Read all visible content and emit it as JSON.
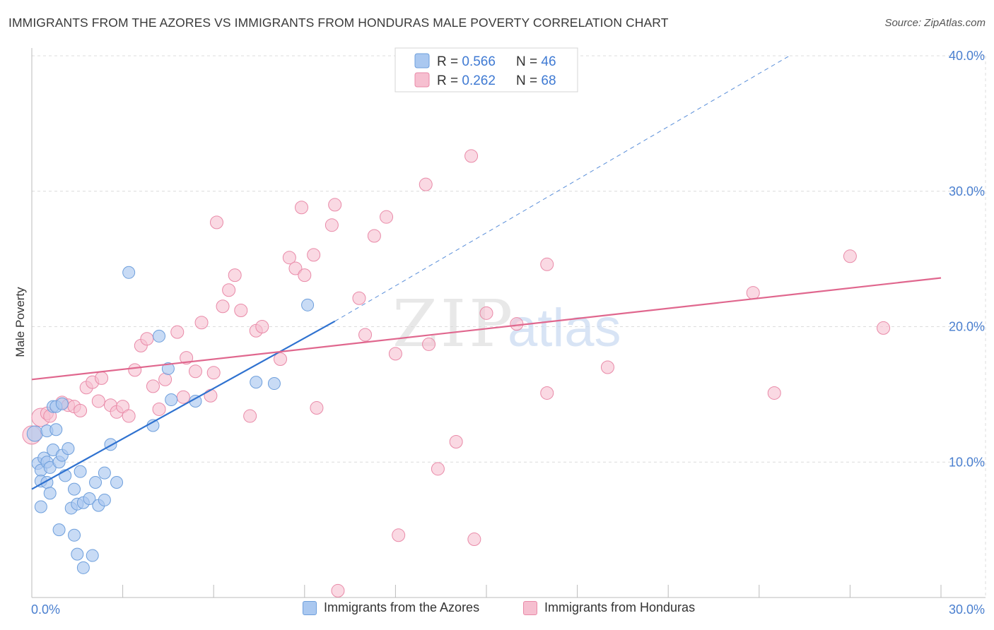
{
  "header": {
    "title": "IMMIGRANTS FROM THE AZORES VS IMMIGRANTS FROM HONDURAS MALE POVERTY CORRELATION CHART",
    "source": "Source: ZipAtlas.com"
  },
  "watermark": {
    "zip": "ZIP",
    "atlas": "atlas"
  },
  "colors": {
    "blue_fill": "#aac8f0",
    "blue_stroke": "#6e9fdc",
    "blue_line": "#2f72d0",
    "pink_fill": "#f6bfd0",
    "pink_stroke": "#e98aa8",
    "pink_line": "#e0678e",
    "tick_label": "#4a7fcf",
    "grid": "#dcdcdc"
  },
  "legend_top": {
    "rows": [
      {
        "r_label": "R = ",
        "r_value": "0.566",
        "n_label": "N = ",
        "n_value": "46"
      },
      {
        "r_label": "R = ",
        "r_value": "0.262",
        "n_label": "N = ",
        "n_value": "68"
      }
    ]
  },
  "legend_bottom": [
    "Immigrants from the Azores",
    "Immigrants from Honduras"
  ],
  "chart_data": {
    "type": "scatter",
    "title": "IMMIGRANTS FROM THE AZORES VS IMMIGRANTS FROM HONDURAS MALE POVERTY CORRELATION CHART",
    "xlabel": "",
    "ylabel": "Male Poverty",
    "xlim": [
      0,
      30
    ],
    "ylim": [
      0,
      40
    ],
    "x_tick_labels": [
      "0.0%",
      "30.0%"
    ],
    "y_ticks": [
      10,
      20,
      30,
      40
    ],
    "y_tick_labels": [
      "10.0%",
      "20.0%",
      "30.0%",
      "40.0%"
    ],
    "grid": true,
    "legend_position": "top-center",
    "series": [
      {
        "name": "Immigrants from the Azores",
        "r": 0.566,
        "n": 46,
        "trend": {
          "x0": 0,
          "y0": 8.0,
          "x1": 10.0,
          "y1": 20.4,
          "dashed_to_x": 25.0,
          "dashed_to_y": 40.0
        },
        "points": [
          [
            0.1,
            12.1
          ],
          [
            0.2,
            9.9
          ],
          [
            0.3,
            9.4
          ],
          [
            0.3,
            8.6
          ],
          [
            0.3,
            6.7
          ],
          [
            0.4,
            10.3
          ],
          [
            0.5,
            12.3
          ],
          [
            0.5,
            10.0
          ],
          [
            0.5,
            8.5
          ],
          [
            0.6,
            9.6
          ],
          [
            0.6,
            7.7
          ],
          [
            0.7,
            14.1
          ],
          [
            0.7,
            10.9
          ],
          [
            0.8,
            14.1
          ],
          [
            0.8,
            12.4
          ],
          [
            0.9,
            5.0
          ],
          [
            0.9,
            10.0
          ],
          [
            1.0,
            14.3
          ],
          [
            1.0,
            10.5
          ],
          [
            1.1,
            9.0
          ],
          [
            1.2,
            11.0
          ],
          [
            1.3,
            6.6
          ],
          [
            1.4,
            4.6
          ],
          [
            1.4,
            8.0
          ],
          [
            1.5,
            3.2
          ],
          [
            1.5,
            6.9
          ],
          [
            1.6,
            9.3
          ],
          [
            1.7,
            2.2
          ],
          [
            1.7,
            7.0
          ],
          [
            1.9,
            7.3
          ],
          [
            2.0,
            3.1
          ],
          [
            2.1,
            8.5
          ],
          [
            2.2,
            6.8
          ],
          [
            2.4,
            9.2
          ],
          [
            2.4,
            7.2
          ],
          [
            2.6,
            11.3
          ],
          [
            2.8,
            8.5
          ],
          [
            3.2,
            24.0
          ],
          [
            4.0,
            12.7
          ],
          [
            4.2,
            19.3
          ],
          [
            4.5,
            16.9
          ],
          [
            4.6,
            14.6
          ],
          [
            5.4,
            14.5
          ],
          [
            7.4,
            15.9
          ],
          [
            8.0,
            15.8
          ],
          [
            9.1,
            21.6
          ]
        ]
      },
      {
        "name": "Immigrants from Honduras",
        "r": 0.262,
        "n": 68,
        "trend": {
          "x0": 0,
          "y0": 16.1,
          "x1": 30.0,
          "y1": 23.6
        },
        "points": [
          [
            0.0,
            12.0
          ],
          [
            0.3,
            13.3
          ],
          [
            0.5,
            13.6
          ],
          [
            1.0,
            14.4
          ],
          [
            1.2,
            14.2
          ],
          [
            1.4,
            14.1
          ],
          [
            1.6,
            13.8
          ],
          [
            1.8,
            15.5
          ],
          [
            2.0,
            15.9
          ],
          [
            2.2,
            14.5
          ],
          [
            2.3,
            16.2
          ],
          [
            2.6,
            14.2
          ],
          [
            2.8,
            13.7
          ],
          [
            3.0,
            14.1
          ],
          [
            3.2,
            13.4
          ],
          [
            3.4,
            16.8
          ],
          [
            3.6,
            18.6
          ],
          [
            3.8,
            19.1
          ],
          [
            4.0,
            15.6
          ],
          [
            4.2,
            13.9
          ],
          [
            4.4,
            16.1
          ],
          [
            4.8,
            19.6
          ],
          [
            5.0,
            14.8
          ],
          [
            5.1,
            17.7
          ],
          [
            5.4,
            16.7
          ],
          [
            5.6,
            20.3
          ],
          [
            5.9,
            14.9
          ],
          [
            6.0,
            16.6
          ],
          [
            6.1,
            27.7
          ],
          [
            6.3,
            21.5
          ],
          [
            6.5,
            22.7
          ],
          [
            6.7,
            23.8
          ],
          [
            6.9,
            21.2
          ],
          [
            7.2,
            13.4
          ],
          [
            7.4,
            19.7
          ],
          [
            7.6,
            20.0
          ],
          [
            8.2,
            17.6
          ],
          [
            8.5,
            25.1
          ],
          [
            8.7,
            24.3
          ],
          [
            8.9,
            28.8
          ],
          [
            9.0,
            23.8
          ],
          [
            9.3,
            25.3
          ],
          [
            9.4,
            14.0
          ],
          [
            9.9,
            27.5
          ],
          [
            10.0,
            29.0
          ],
          [
            10.1,
            0.5
          ],
          [
            10.8,
            22.1
          ],
          [
            11.0,
            19.4
          ],
          [
            11.3,
            26.7
          ],
          [
            11.7,
            28.1
          ],
          [
            12.0,
            18.0
          ],
          [
            12.1,
            4.6
          ],
          [
            13.0,
            30.5
          ],
          [
            13.1,
            18.7
          ],
          [
            13.4,
            9.5
          ],
          [
            14.0,
            11.5
          ],
          [
            14.5,
            32.6
          ],
          [
            14.6,
            4.3
          ],
          [
            15.0,
            21.0
          ],
          [
            16.0,
            20.2
          ],
          [
            17.0,
            24.6
          ],
          [
            17.0,
            15.1
          ],
          [
            19.0,
            17.0
          ],
          [
            23.8,
            22.5
          ],
          [
            24.5,
            15.1
          ],
          [
            27.0,
            25.2
          ],
          [
            28.1,
            19.9
          ],
          [
            0.6,
            13.4
          ]
        ]
      }
    ]
  }
}
